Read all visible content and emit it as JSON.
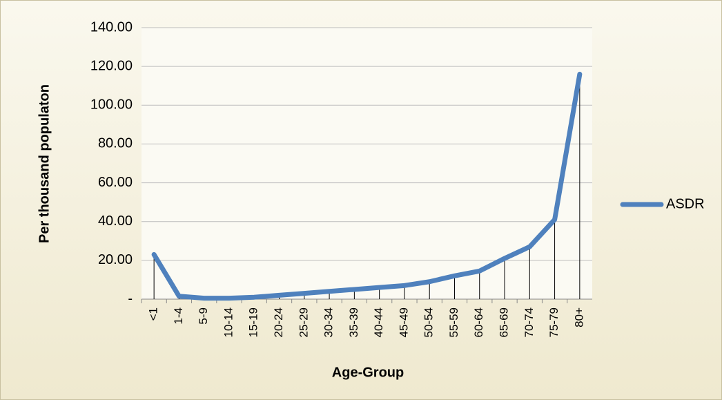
{
  "chart_data": {
    "type": "line",
    "x_label": "Age-Group",
    "y_label": "Per thousand populaton",
    "categories": [
      "<1",
      "1-4",
      "5-9",
      "10-14",
      "15-19",
      "20-24",
      "25-29",
      "30-34",
      "35-39",
      "40-44",
      "45-49",
      "50-54",
      "55-59",
      "60-64",
      "65-69",
      "70-74",
      "75-79",
      "80+"
    ],
    "series": [
      {
        "name": "ASDR",
        "color": "#4f81bd",
        "values": [
          23,
          1.5,
          0.5,
          0.5,
          1,
          2,
          3,
          4,
          5,
          6,
          7,
          9,
          12,
          14.5,
          21,
          27,
          41,
          116
        ]
      }
    ],
    "ylim": [
      0,
      140
    ],
    "yticks": [
      {
        "value": 0,
        "label": "-"
      },
      {
        "value": 20,
        "label": "20.00"
      },
      {
        "value": 40,
        "label": "40.00"
      },
      {
        "value": 60,
        "label": "60.00"
      },
      {
        "value": 80,
        "label": "80.00"
      },
      {
        "value": 100,
        "label": "100.00"
      },
      {
        "value": 120,
        "label": "120.00"
      },
      {
        "value": 140,
        "label": "140.00"
      }
    ],
    "grid": true,
    "drop_lines": true,
    "legend": "right"
  }
}
